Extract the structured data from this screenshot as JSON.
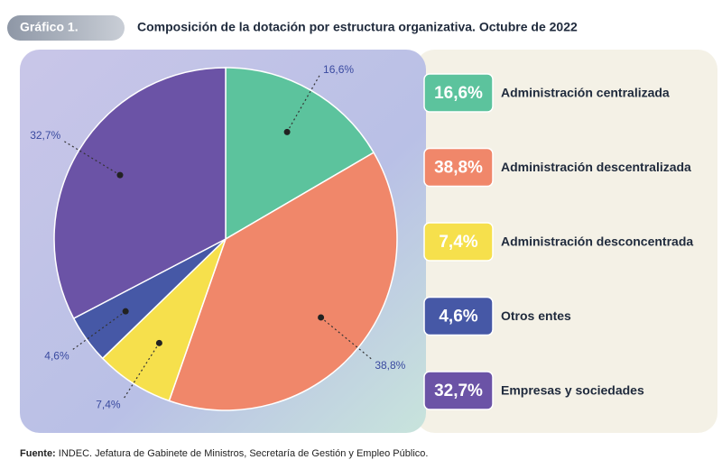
{
  "chart_data": {
    "type": "pie",
    "badge": "Gráfico 1.",
    "title": "Composición de la dotación por estructura organizativa. Octubre de 2022",
    "categories": [
      "Administración centralizada",
      "Administración descentralizada",
      "Administración desconcentrada",
      "Otros entes",
      "Empresas y sociedades"
    ],
    "values": [
      16.6,
      38.8,
      7.4,
      4.6,
      32.7
    ],
    "value_labels": [
      "16,6%",
      "38,8%",
      "7,4%",
      "4,6%",
      "32,7%"
    ],
    "colors": [
      "#5cc39d",
      "#f0876a",
      "#f6e04c",
      "#4658a6",
      "#6b53a6"
    ],
    "source_label": "Fuente:",
    "source": "INDEC. Jefatura de Gabinete de Ministros, Secretaría de Gestión y Empleo Público."
  }
}
